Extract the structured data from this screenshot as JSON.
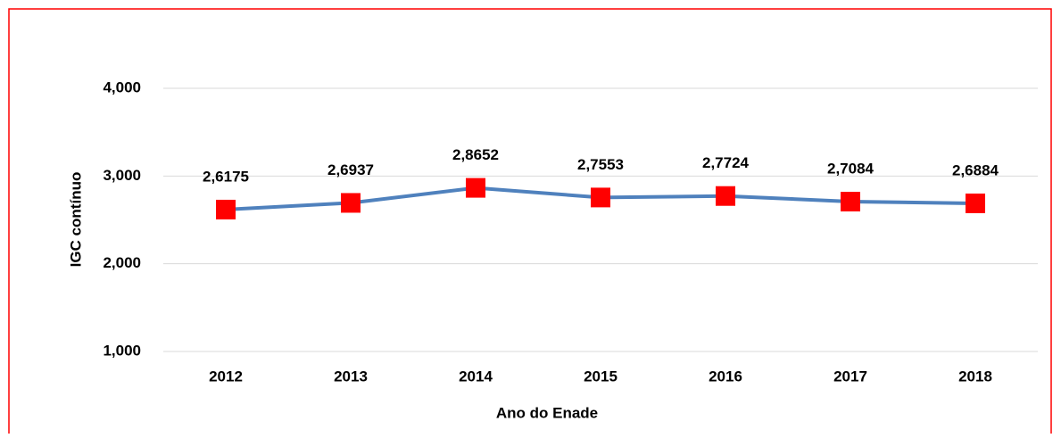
{
  "chart_data": {
    "type": "line",
    "categories": [
      "2012",
      "2013",
      "2014",
      "2015",
      "2016",
      "2017",
      "2018"
    ],
    "series": [
      {
        "color": "#4f81bd",
        "marker_color": "#ff0000",
        "values": [
          2.6175,
          2.6937,
          2.8652,
          2.7553,
          2.7724,
          2.7084,
          2.6884
        ],
        "value_labels": [
          "2,6175",
          "2,6937",
          "2,8652",
          "2,7553",
          "2,7724",
          "2,7084",
          "2,6884"
        ]
      }
    ],
    "ylim": [
      1,
      4
    ],
    "yticks": [
      {
        "value": 1,
        "label": "1,000"
      },
      {
        "value": 2,
        "label": "2,000"
      },
      {
        "value": 3,
        "label": "3,000"
      },
      {
        "value": 4,
        "label": "4,000"
      }
    ],
    "xlabel": "Ano do Enade",
    "ylabel": "IGC contínuo",
    "grid": true
  }
}
